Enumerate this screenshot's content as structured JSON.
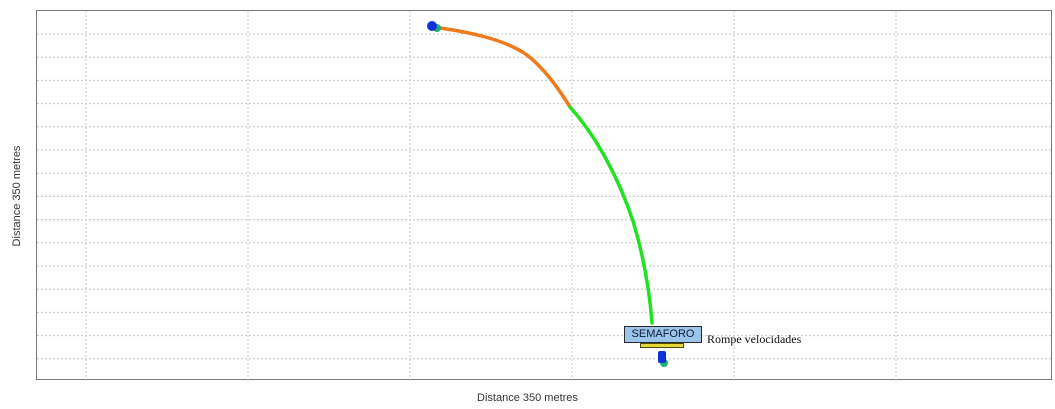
{
  "map": {
    "x_axis_label": "Distance 350 metres",
    "y_axis_label": "Distance 350 metres",
    "markers": {
      "signal_label": "SEMAFORO",
      "speed_bump_label": "Rompe velocidades"
    },
    "colors": {
      "route_start_segment": "#f07a1a",
      "route_end_segment": "#22e022",
      "endpoint_primary": "#1033d8",
      "endpoint_secondary": "#1db36a",
      "grid": "#c8c8c8",
      "signal_fill": "#9cc3e8",
      "speed_bump_fill": "#e5d63a"
    }
  }
}
